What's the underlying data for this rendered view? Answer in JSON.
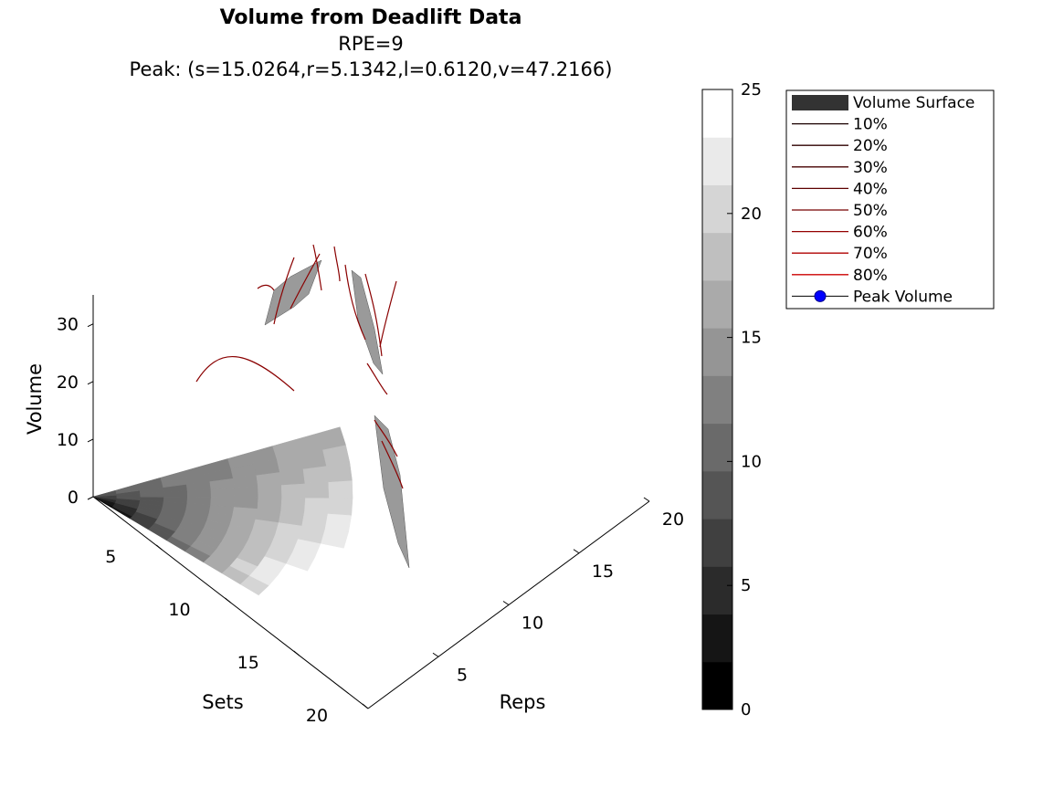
{
  "chart_data": {
    "type": "surface3d",
    "title": "Volume from Deadlift Data",
    "subtitle": "RPE=9",
    "peak_text": "Peak: (s=15.0264,r=5.1342,l=0.6120,v=47.2166)",
    "peak": {
      "s": 15.0264,
      "r": 5.1342,
      "l": 0.612,
      "v": 47.2166
    },
    "xlabel": "Sets",
    "ylabel": "Reps",
    "zlabel": "Volume",
    "xlim": [
      0,
      20
    ],
    "ylim": [
      0,
      20
    ],
    "zlim": [
      0,
      35
    ],
    "xticks": [
      "5",
      "10",
      "15",
      "20"
    ],
    "yticks": [
      "5",
      "10",
      "15",
      "20"
    ],
    "zticks": [
      "0",
      "10",
      "20",
      "30"
    ],
    "colorbar": {
      "range": [
        0,
        25
      ],
      "ticks": [
        "0",
        "5",
        "10",
        "15",
        "20",
        "25"
      ],
      "levels": 13,
      "colormap": "gray"
    },
    "legend": {
      "position": "top-right",
      "entries": [
        {
          "label": "Volume Surface",
          "kind": "patch",
          "color": "#333333"
        },
        {
          "label": "10%",
          "kind": "line",
          "color": "#1a0000"
        },
        {
          "label": "20%",
          "kind": "line",
          "color": "#2e0000"
        },
        {
          "label": "30%",
          "kind": "line",
          "color": "#470000"
        },
        {
          "label": "40%",
          "kind": "line",
          "color": "#5e0000"
        },
        {
          "label": "50%",
          "kind": "line",
          "color": "#780000"
        },
        {
          "label": "60%",
          "kind": "line",
          "color": "#940000"
        },
        {
          "label": "70%",
          "kind": "line",
          "color": "#b00000"
        },
        {
          "label": "80%",
          "kind": "line",
          "color": "#cc0000"
        },
        {
          "label": "Peak Volume",
          "kind": "marker",
          "color": "#0000ff"
        }
      ]
    }
  }
}
